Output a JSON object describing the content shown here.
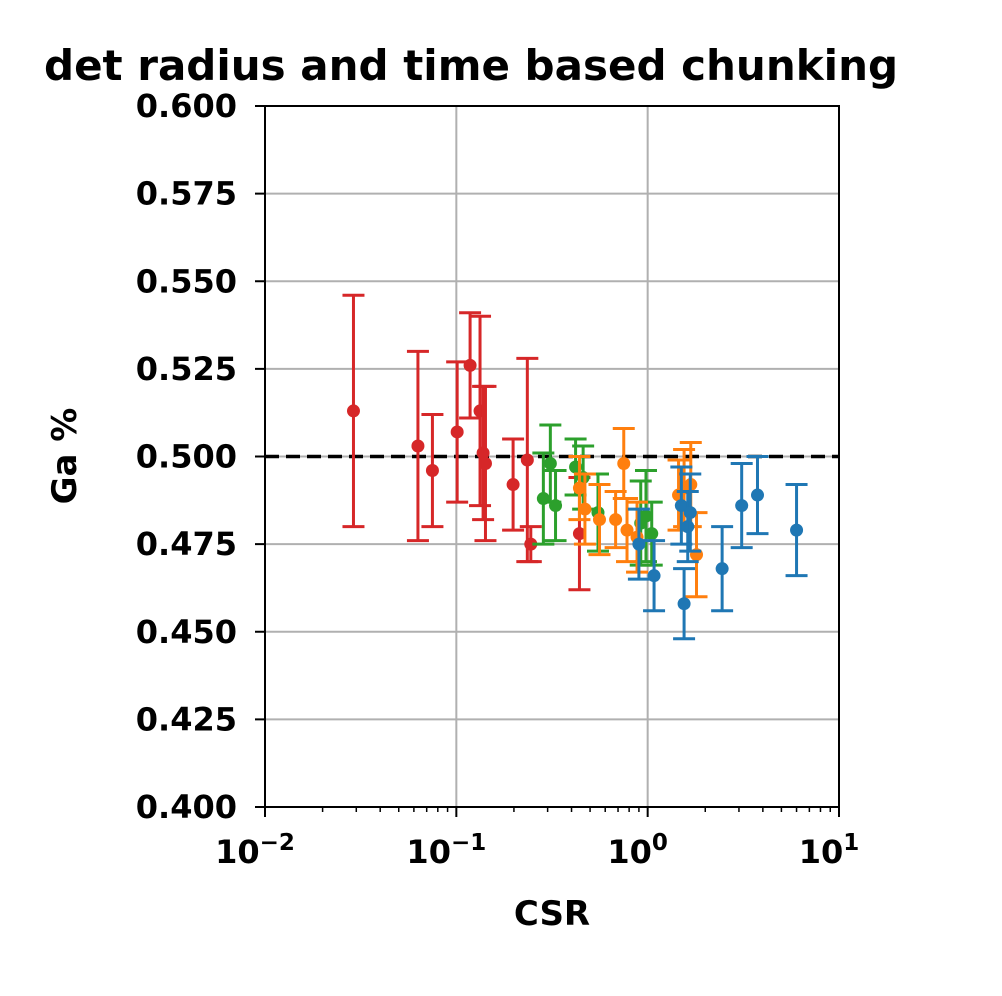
{
  "chart_data": {
    "type": "scatter",
    "title": "det radius and time based chunking",
    "xlabel": "CSR",
    "ylabel": "Ga %",
    "xscale": "log",
    "xlim": [
      0.01,
      10
    ],
    "ylim": [
      0.4,
      0.6
    ],
    "grid": true,
    "x_ticks": [
      {
        "value": 0.01,
        "base": "10",
        "exp": "−2"
      },
      {
        "value": 0.1,
        "base": "10",
        "exp": "−1"
      },
      {
        "value": 1,
        "base": "10",
        "exp": "0"
      },
      {
        "value": 10,
        "base": "10",
        "exp": "1"
      }
    ],
    "y_ticks": [
      {
        "value": 0.4,
        "label": "0.400"
      },
      {
        "value": 0.425,
        "label": "0.425"
      },
      {
        "value": 0.45,
        "label": "0.450"
      },
      {
        "value": 0.475,
        "label": "0.475"
      },
      {
        "value": 0.5,
        "label": "0.500"
      },
      {
        "value": 0.525,
        "label": "0.525"
      },
      {
        "value": 0.55,
        "label": "0.550"
      },
      {
        "value": 0.575,
        "label": "0.575"
      },
      {
        "value": 0.6,
        "label": "0.600"
      }
    ],
    "reference_line": {
      "y": 0.5,
      "style": "dashed",
      "color": "#000000"
    },
    "series": [
      {
        "color": "#d62728",
        "points": [
          {
            "x": 0.029,
            "y": 0.513,
            "err": 0.033
          },
          {
            "x": 0.063,
            "y": 0.503,
            "err": 0.027
          },
          {
            "x": 0.075,
            "y": 0.496,
            "err": 0.016
          },
          {
            "x": 0.101,
            "y": 0.507,
            "err": 0.02
          },
          {
            "x": 0.118,
            "y": 0.526,
            "err": 0.015
          },
          {
            "x": 0.133,
            "y": 0.513,
            "err": 0.027
          },
          {
            "x": 0.138,
            "y": 0.501,
            "err": 0.019
          },
          {
            "x": 0.142,
            "y": 0.498,
            "err": 0.022
          },
          {
            "x": 0.198,
            "y": 0.492,
            "err": 0.013
          },
          {
            "x": 0.235,
            "y": 0.499,
            "err": 0.029
          },
          {
            "x": 0.245,
            "y": 0.475,
            "err": 0.005
          },
          {
            "x": 0.44,
            "y": 0.478,
            "err": 0.016
          }
        ]
      },
      {
        "color": "#2ca02c",
        "points": [
          {
            "x": 0.285,
            "y": 0.488,
            "err": 0.013
          },
          {
            "x": 0.31,
            "y": 0.498,
            "err": 0.011
          },
          {
            "x": 0.33,
            "y": 0.486,
            "err": 0.01
          },
          {
            "x": 0.42,
            "y": 0.497,
            "err": 0.008
          },
          {
            "x": 0.46,
            "y": 0.494,
            "err": 0.009
          },
          {
            "x": 0.55,
            "y": 0.484,
            "err": 0.011
          },
          {
            "x": 0.92,
            "y": 0.481,
            "err": 0.012
          },
          {
            "x": 0.98,
            "y": 0.483,
            "err": 0.013
          },
          {
            "x": 1.05,
            "y": 0.478,
            "err": 0.009
          }
        ]
      },
      {
        "color": "#ff7f0e",
        "points": [
          {
            "x": 0.44,
            "y": 0.491,
            "err": 0.009
          },
          {
            "x": 0.47,
            "y": 0.485,
            "err": 0.01
          },
          {
            "x": 0.56,
            "y": 0.482,
            "err": 0.01
          },
          {
            "x": 0.68,
            "y": 0.482,
            "err": 0.008
          },
          {
            "x": 0.75,
            "y": 0.498,
            "err": 0.01
          },
          {
            "x": 0.78,
            "y": 0.479,
            "err": 0.009
          },
          {
            "x": 0.88,
            "y": 0.477,
            "err": 0.01
          },
          {
            "x": 1.45,
            "y": 0.489,
            "err": 0.01
          },
          {
            "x": 1.55,
            "y": 0.491,
            "err": 0.011
          },
          {
            "x": 1.68,
            "y": 0.492,
            "err": 0.012
          },
          {
            "x": 1.8,
            "y": 0.472,
            "err": 0.012
          }
        ]
      },
      {
        "color": "#1f77b4",
        "points": [
          {
            "x": 0.9,
            "y": 0.475,
            "err": 0.01
          },
          {
            "x": 1.08,
            "y": 0.466,
            "err": 0.01
          },
          {
            "x": 1.5,
            "y": 0.486,
            "err": 0.011
          },
          {
            "x": 1.55,
            "y": 0.458,
            "err": 0.01
          },
          {
            "x": 1.62,
            "y": 0.48,
            "err": 0.01
          },
          {
            "x": 1.67,
            "y": 0.484,
            "err": 0.011
          },
          {
            "x": 2.45,
            "y": 0.468,
            "err": 0.012
          },
          {
            "x": 3.1,
            "y": 0.486,
            "err": 0.012
          },
          {
            "x": 3.75,
            "y": 0.489,
            "err": 0.011
          },
          {
            "x": 6.0,
            "y": 0.479,
            "err": 0.013
          }
        ]
      }
    ]
  }
}
